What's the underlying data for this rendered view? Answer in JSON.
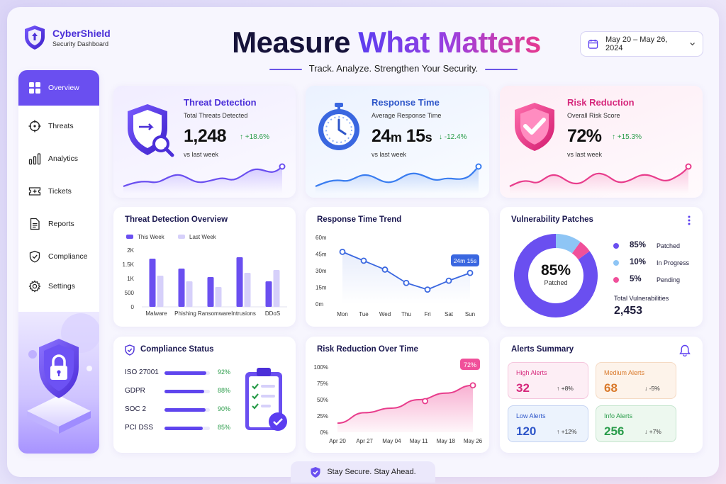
{
  "brand": {
    "name": "CyberShield",
    "subtitle": "Security Dashboard"
  },
  "header": {
    "headline_a": "Measure ",
    "headline_b": "What Matters",
    "tagline": "Track. Analyze. Strengthen Your Security.",
    "date_range": "May 20 – May 26, 2024"
  },
  "sidebar": {
    "items": [
      {
        "label": "Overview",
        "icon": "grid-icon"
      },
      {
        "label": "Threats",
        "icon": "crosshair-icon"
      },
      {
        "label": "Analytics",
        "icon": "bar-chart-icon"
      },
      {
        "label": "Tickets",
        "icon": "ticket-icon"
      },
      {
        "label": "Reports",
        "icon": "document-icon"
      },
      {
        "label": "Compliance",
        "icon": "shield-check-icon"
      },
      {
        "label": "Settings",
        "icon": "gear-icon"
      }
    ]
  },
  "kpis": [
    {
      "title": "Threat Detection",
      "subtitle": "Total Threats Detected",
      "value": "1,248",
      "delta": "↑ +18.6%",
      "vs": "vs last week",
      "color": "#4b2fd8"
    },
    {
      "title": "Response Time",
      "subtitle": "Average Response Time",
      "value_a": "24",
      "unit_a": "m",
      "value_b": " 15",
      "unit_b": "s",
      "delta": "↓ -12.4%",
      "vs": "vs last week",
      "color": "#2e56c9"
    },
    {
      "title": "Risk Reduction",
      "subtitle": "Overall Risk Score",
      "value": "72%",
      "delta": "↑ +15.3%",
      "vs": "vs last week",
      "color": "#d6287c"
    }
  ],
  "threat_overview": {
    "title": "Threat Detection Overview",
    "legend": [
      "This Week",
      "Last Week"
    ],
    "chart_data": {
      "type": "bar",
      "categories": [
        "Malware",
        "Phishing",
        "Ransomware",
        "Intrusions",
        "DDoS"
      ],
      "series": [
        {
          "name": "This Week",
          "values": [
            1700,
            1350,
            1050,
            1750,
            900
          ]
        },
        {
          "name": "Last Week",
          "values": [
            1100,
            900,
            700,
            1200,
            1300
          ]
        }
      ],
      "yticks": [
        "0",
        "500",
        "1K",
        "1.5K",
        "2K"
      ],
      "ylim": [
        0,
        2000
      ]
    }
  },
  "response_trend": {
    "title": "Response Time Trend",
    "callout": "24m 15s",
    "chart_data": {
      "type": "line",
      "categories": [
        "Mon",
        "Tue",
        "Wed",
        "Thu",
        "Fri",
        "Sat",
        "Sun"
      ],
      "values": [
        47,
        39,
        31,
        19,
        13,
        21,
        28
      ],
      "yticks": [
        "0m",
        "15m",
        "30m",
        "45m",
        "60m"
      ],
      "ylim": [
        0,
        60
      ]
    }
  },
  "vulnerability": {
    "title": "Vulnerability Patches",
    "center_value": "85%",
    "center_label": "Patched",
    "chart_data": {
      "type": "pie",
      "labels": [
        "Patched",
        "In Progress",
        "Pending"
      ],
      "values": [
        85,
        10,
        5
      ],
      "colors": [
        "#6a4ff0",
        "#8ec5f5",
        "#f0509a"
      ]
    },
    "legend_values": [
      "85%",
      "10%",
      "5%"
    ],
    "total_label": "Total Vulnerabilities",
    "total_value": "2,453"
  },
  "compliance": {
    "title": "Compliance Status",
    "items": [
      {
        "name": "ISO 27001",
        "pct": "92%",
        "value": 92
      },
      {
        "name": "GDPR",
        "pct": "88%",
        "value": 88
      },
      {
        "name": "SOC 2",
        "pct": "90%",
        "value": 90
      },
      {
        "name": "PCI DSS",
        "pct": "85%",
        "value": 85
      }
    ]
  },
  "risk_over_time": {
    "title": "Risk Reduction Over Time",
    "callout": "72%",
    "chart_data": {
      "type": "area",
      "categories": [
        "Apr 20",
        "Apr 27",
        "May 04",
        "May 11",
        "May 18",
        "May 26"
      ],
      "values": [
        14,
        30,
        37,
        50,
        60,
        72
      ],
      "yticks": [
        "0%",
        "25%",
        "50%",
        "75%",
        "100%"
      ],
      "ylim": [
        0,
        100
      ]
    }
  },
  "alerts": {
    "title": "Alerts Summary",
    "items": [
      {
        "label": "High Alerts",
        "value": "32",
        "delta": "↑ +8%",
        "color": "#d6287c",
        "bg": "#fdeef5"
      },
      {
        "label": "Medium Alerts",
        "value": "68",
        "delta": "↓ -5%",
        "color": "#d9792a",
        "bg": "#fdf3ea"
      },
      {
        "label": "Low Alerts",
        "value": "120",
        "delta": "↑ +12%",
        "color": "#2e56c9",
        "bg": "#ecf3fd"
      },
      {
        "label": "Info Alerts",
        "value": "256",
        "delta": "↓ +7%",
        "color": "#2a9c4a",
        "bg": "#edf8ef"
      }
    ]
  },
  "footer": {
    "text": "Stay Secure. Stay Ahead."
  }
}
